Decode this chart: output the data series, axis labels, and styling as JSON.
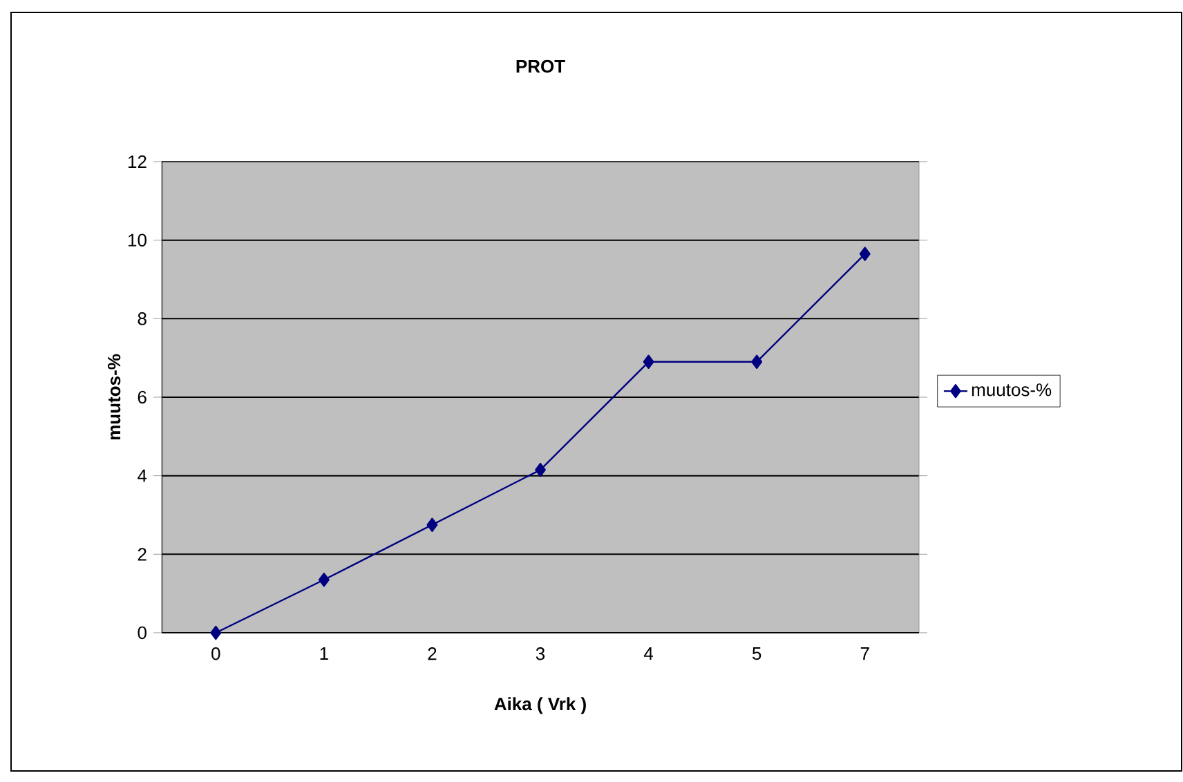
{
  "chart_data": {
    "type": "line",
    "title": "PROT",
    "xlabel": "Aika ( Vrk )",
    "ylabel": "muutos-%",
    "categories": [
      "0",
      "1",
      "2",
      "3",
      "4",
      "5",
      "7"
    ],
    "series": [
      {
        "name": "muutos-%",
        "color": "#000080",
        "values": [
          0,
          1.35,
          2.75,
          4.15,
          6.9,
          6.9,
          9.65
        ]
      }
    ],
    "ylim": [
      0,
      12
    ],
    "yticks": [
      0,
      2,
      4,
      6,
      8,
      10,
      12
    ],
    "grid": "y",
    "legend": "right",
    "marker": "diamond",
    "line_style": "solid"
  }
}
